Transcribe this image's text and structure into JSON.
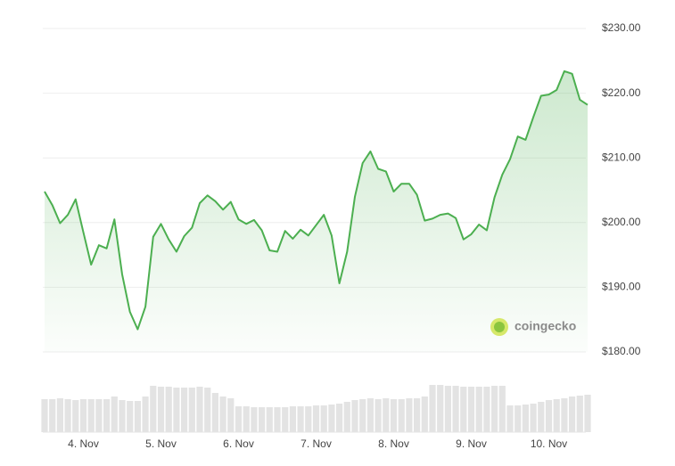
{
  "chart_data": {
    "type": "line",
    "watermark": "coingecko",
    "categories": [
      null,
      null,
      null,
      null,
      null,
      "4. Nov",
      null,
      null,
      null,
      null,
      null,
      null,
      null,
      null,
      null,
      "5. Nov",
      null,
      null,
      null,
      null,
      null,
      null,
      null,
      null,
      null,
      "6. Nov",
      null,
      null,
      null,
      null,
      null,
      null,
      null,
      null,
      null,
      "7. Nov",
      null,
      null,
      null,
      null,
      null,
      null,
      null,
      null,
      null,
      "8. Nov",
      null,
      null,
      null,
      null,
      null,
      null,
      null,
      null,
      null,
      "9. Nov",
      null,
      null,
      null,
      null,
      null,
      null,
      null,
      null,
      null,
      "10. Nov",
      null,
      null,
      null,
      null,
      null
    ],
    "series": [
      {
        "name": "Price",
        "color": "#4caf50",
        "values": [
          204.8,
          202.7,
          199.9,
          201.2,
          203.6,
          198.5,
          193.5,
          196.5,
          196,
          200.5,
          192,
          186.2,
          183.5,
          187,
          197.8,
          199.8,
          197.4,
          195.5,
          197.9,
          199.2,
          203,
          204.2,
          203.3,
          202,
          203.2,
          200.5,
          199.8,
          200.4,
          198.8,
          195.7,
          195.5,
          198.7,
          197.5,
          198.9,
          198,
          199.6,
          201.2,
          198,
          190.6,
          195.5,
          204,
          209.2,
          211,
          208.3,
          207.9,
          204.8,
          206,
          206,
          204.3,
          200.3,
          200.6,
          201.2,
          201.4,
          200.7,
          197.4,
          198.2,
          199.7,
          198.8,
          203.9,
          207.4,
          209.8,
          213.3,
          212.8,
          216.3,
          219.6,
          219.8,
          220.5,
          223.4,
          223,
          219,
          218.2
        ]
      },
      {
        "name": "Volume",
        "color": "#e3e3e3",
        "values": [
          37,
          37,
          38,
          37,
          36,
          37,
          37,
          37,
          37,
          40,
          36,
          35,
          35,
          40,
          52,
          51,
          51,
          50,
          50,
          50,
          51,
          50,
          44,
          40,
          38,
          29,
          29,
          28,
          28,
          28,
          28,
          28,
          29,
          29,
          29,
          30,
          30,
          31,
          32,
          34,
          36,
          37,
          38,
          37,
          38,
          37,
          37,
          38,
          38,
          40,
          53,
          53,
          52,
          52,
          51,
          51,
          51,
          51,
          52,
          52,
          30,
          30,
          31,
          32,
          34,
          36,
          37,
          38,
          40,
          41,
          42
        ]
      }
    ],
    "ylim": [
      180,
      230
    ],
    "yticks": [
      {
        "value": 180,
        "label": "$180.00"
      },
      {
        "value": 190,
        "label": "$190.00"
      },
      {
        "value": 200,
        "label": "$200.00"
      },
      {
        "value": 210,
        "label": "$210.00"
      },
      {
        "value": 220,
        "label": "$220.00"
      },
      {
        "value": 230,
        "label": "$230.00"
      }
    ],
    "grid": true
  }
}
